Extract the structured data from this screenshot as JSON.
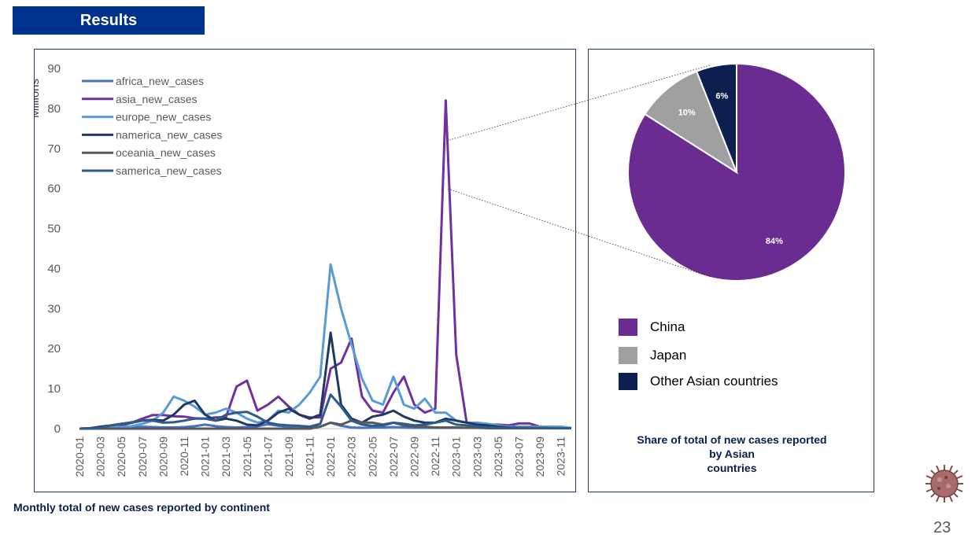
{
  "header": {
    "title": "Results"
  },
  "line_chart_caption": "Monthly total of new cases reported by continent",
  "pie_chart_caption": [
    "Share of total of new cases reported",
    "by Asian",
    "countries"
  ],
  "page_number": "23",
  "colors": {
    "header_bg": "#00338d",
    "africa": "#4472c4",
    "asia": "#7030a0",
    "europe": "#5b9bd5",
    "namerica": "#203864",
    "oceania": "#595959",
    "samerica": "#2e5c8a",
    "china": "#6b2c91",
    "japan": "#a0a0a0",
    "other": "#0d1f4f"
  },
  "chart_data": [
    {
      "type": "line",
      "ylabel": "Millions",
      "ylim": [
        0,
        90
      ],
      "yticks": [
        "0",
        "10",
        "20",
        "30",
        "40",
        "50",
        "60",
        "70",
        "80",
        "90"
      ],
      "x_tick_labels": [
        "2020-01",
        "2020-03",
        "2020-05",
        "2020-07",
        "2020-09",
        "2020-11",
        "2021-01",
        "2021-03",
        "2021-05",
        "2021-07",
        "2021-09",
        "2021-11",
        "2022-01",
        "2022-03",
        "2022-05",
        "2022-07",
        "2022-09",
        "2022-11",
        "2023-01",
        "2023-03",
        "2023-05",
        "2023-07",
        "2023-09",
        "2023-11"
      ],
      "x_months_count": 48,
      "legend": "top-left",
      "series": [
        {
          "name": "africa_new_cases",
          "color": "#4472c4",
          "values": [
            0,
            0,
            0,
            0.1,
            0.2,
            0.3,
            0.5,
            0.4,
            0.3,
            0.3,
            0.4,
            0.6,
            1.0,
            0.6,
            0.4,
            0.3,
            0.4,
            0.6,
            1.1,
            0.7,
            0.5,
            0.4,
            0.3,
            0.5,
            1.5,
            0.7,
            0.3,
            0.2,
            0.3,
            0.3,
            0.4,
            0.3,
            0.2,
            0.2,
            0.2,
            0.2,
            0.2,
            0.2,
            0.2,
            0.1,
            0.1,
            0.1,
            0.1,
            0.1,
            0.1,
            0.1,
            0.1,
            0.1
          ]
        },
        {
          "name": "asia_new_cases",
          "color": "#7030a0",
          "values": [
            0,
            0.1,
            0.3,
            0.5,
            0.8,
            1.5,
            2.5,
            3.4,
            3.4,
            3.1,
            3.0,
            2.6,
            2.5,
            2.8,
            2.9,
            10.5,
            12.0,
            4.5,
            6.0,
            8.0,
            5.5,
            3.5,
            2.8,
            2.8,
            15.0,
            16.5,
            22.5,
            8.0,
            4.5,
            4.0,
            9.0,
            13.0,
            6.0,
            4.0,
            5.0,
            82.0,
            18.5,
            1.5,
            1.2,
            1.0,
            1.0,
            0.8,
            1.3,
            1.3,
            0.5,
            0.3,
            0.2,
            0.1
          ]
        },
        {
          "name": "europe_new_cases",
          "color": "#5b9bd5",
          "values": [
            0,
            0.1,
            0.3,
            0.6,
            0.4,
            0.6,
            1.2,
            2.0,
            4.0,
            8.0,
            7.0,
            5.5,
            3.5,
            4.0,
            5.0,
            4.0,
            2.5,
            1.5,
            2.0,
            4.5,
            4.0,
            6.0,
            9.0,
            13.0,
            41.0,
            30.0,
            21.0,
            12.5,
            7.0,
            6.0,
            13.0,
            6.0,
            5.0,
            7.5,
            4.0,
            4.0,
            2.0,
            1.5,
            1.5,
            1.2,
            0.8,
            0.5,
            0.5,
            0.5,
            0.5,
            0.5,
            0.5,
            0.2
          ]
        },
        {
          "name": "namerica_new_cases",
          "color": "#203864",
          "values": [
            0,
            0.1,
            0.5,
            0.8,
            1.2,
            1.5,
            2.0,
            2.2,
            2.0,
            3.5,
            6.0,
            7.0,
            3.5,
            2.0,
            2.5,
            2.0,
            1.0,
            0.8,
            2.0,
            4.0,
            5.0,
            3.5,
            2.5,
            3.5,
            24.0,
            6.0,
            2.5,
            1.5,
            3.0,
            3.5,
            4.5,
            3.0,
            2.0,
            1.5,
            1.5,
            2.5,
            2.0,
            1.5,
            1.0,
            0.8,
            0.5,
            0.3,
            0.2,
            0.2,
            0.1,
            0.1,
            0.1,
            0.1
          ]
        },
        {
          "name": "oceania_new_cases",
          "color": "#595959",
          "values": [
            0,
            0,
            0,
            0,
            0,
            0,
            0,
            0,
            0,
            0,
            0,
            0,
            0,
            0,
            0,
            0,
            0,
            0,
            0,
            0,
            0,
            0,
            0,
            0.5,
            1.5,
            1.0,
            2.0,
            1.5,
            1.5,
            1.0,
            1.5,
            0.8,
            0.5,
            0.5,
            0.3,
            0.3,
            0.3,
            0.2,
            0.2,
            0.2,
            0.1,
            0.1,
            0.1,
            0.1,
            0.1,
            0.1,
            0.1,
            0.1
          ]
        },
        {
          "name": "samerica_new_cases",
          "color": "#2e5c8a",
          "values": [
            0,
            0,
            0.2,
            0.8,
            1.2,
            1.6,
            2.0,
            2.0,
            1.5,
            1.6,
            2.0,
            2.5,
            2.5,
            2.0,
            3.5,
            4.0,
            4.2,
            3.0,
            1.5,
            1.0,
            0.8,
            0.7,
            0.5,
            1.2,
            8.5,
            5.5,
            2.0,
            1.0,
            0.7,
            0.8,
            1.5,
            1.2,
            0.8,
            1.0,
            1.5,
            2.0,
            1.0,
            0.8,
            0.5,
            0.3,
            0.2,
            0.2,
            0.2,
            0.2,
            0.2,
            0.1,
            0.1,
            0.1
          ]
        }
      ]
    },
    {
      "type": "pie",
      "slices": [
        {
          "label": "China",
          "value": 84,
          "display": "84%",
          "color": "#6b2c91"
        },
        {
          "label": "Japan",
          "value": 10,
          "display": "10%",
          "color": "#a0a0a0"
        },
        {
          "label": "Other Asian countries",
          "value": 6,
          "display": "6%",
          "color": "#0d1f4f"
        }
      ],
      "legend": "bottom"
    }
  ]
}
